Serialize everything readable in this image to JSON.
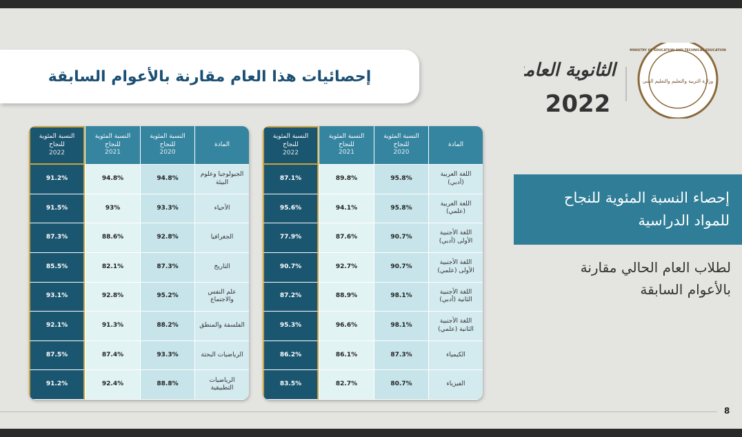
{
  "header": {
    "title": "إحصائيات هذا العام مقارنة بالأعوام السابقة",
    "logo_text": "الثانوية العامة",
    "logo_year": "2022",
    "ministry_en": "MINISTRY OF EDUCATION AND TECHNICAL EDUCATION",
    "ministry_ar": "وزارة التربية والتعليم والتعليم الفني"
  },
  "panel": {
    "title": "إحصاء النسبة المئوية للنجاح للمواد الدراسية",
    "subtitle": "لطلاب العام الحالي مقارنة بالأعوام السابقة"
  },
  "tables": [
    {
      "columns": [
        {
          "label": "المادة"
        },
        {
          "label": "النسبة المئوية للنجاح",
          "year": "2020"
        },
        {
          "label": "النسبة المئوية للنجاح",
          "year": "2021"
        },
        {
          "label": "النسبة المئوية للنجاح",
          "year": "2022"
        }
      ],
      "rows": [
        [
          "اللغة العربية (أدبي)",
          "95.8%",
          "89.8%",
          "87.1%"
        ],
        [
          "اللغة العربية (علمي)",
          "95.8%",
          "94.1%",
          "95.6%"
        ],
        [
          "اللغة الأجنبية الأولى (أدبي)",
          "90.7%",
          "87.6%",
          "77.9%"
        ],
        [
          "اللغة الأجنبية الأولى (علمي)",
          "90.7%",
          "92.7%",
          "90.7%"
        ],
        [
          "اللغة الأجنبية الثانية (أدبي)",
          "98.1%",
          "88.9%",
          "87.2%"
        ],
        [
          "اللغة الأجنبية الثانية (علمي)",
          "98.1%",
          "96.6%",
          "95.3%"
        ],
        [
          "الكيمياء",
          "87.3%",
          "86.1%",
          "86.2%"
        ],
        [
          "الفيزياء",
          "80.7%",
          "82.7%",
          "83.5%"
        ]
      ]
    },
    {
      "columns": [
        {
          "label": "المادة"
        },
        {
          "label": "النسبة المئوية للنجاح",
          "year": "2020"
        },
        {
          "label": "النسبة المئوية للنجاح",
          "year": "2021"
        },
        {
          "label": "النسبة المئوية للنجاح",
          "year": "2022"
        }
      ],
      "rows": [
        [
          "الجيولوجيا وعلوم البيئة",
          "94.8%",
          "94.8%",
          "91.2%"
        ],
        [
          "الأحياء",
          "93.3%",
          "93%",
          "91.5%"
        ],
        [
          "الجغرافيا",
          "92.8%",
          "88.6%",
          "87.3%"
        ],
        [
          "التاريخ",
          "87.3%",
          "82.1%",
          "85.5%"
        ],
        [
          "علم النفس والاجتماع",
          "95.2%",
          "92.8%",
          "93.1%"
        ],
        [
          "الفلسفة والمنطق",
          "88.2%",
          "91.3%",
          "92.1%"
        ],
        [
          "الرياضيات البحتة",
          "93.3%",
          "87.4%",
          "87.5%"
        ],
        [
          "الرياضيات التطبيقية",
          "88.8%",
          "92.4%",
          "91.2%"
        ]
      ]
    }
  ],
  "footer": {
    "page": "8"
  }
}
